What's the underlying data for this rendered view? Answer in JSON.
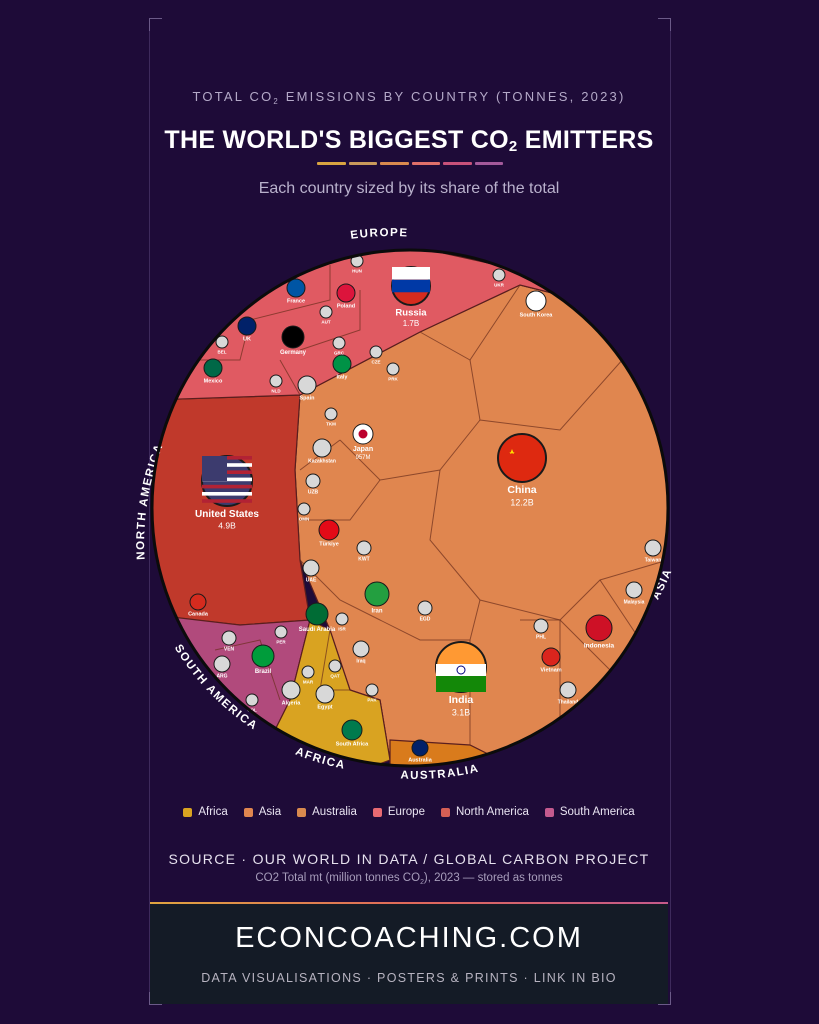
{
  "header": {
    "kicker_pre": "TOTAL CO",
    "kicker_sub": "2",
    "kicker_post": " EMISSIONS BY COUNTRY (TONNES, 2023)",
    "title_pre": "THE WORLD'S BIGGEST CO",
    "title_sub": "2",
    "title_post": " EMITTERS",
    "subtitle": "Each country sized by its share of the total",
    "rule_colors": [
      "#d9a441",
      "#c99a5b",
      "#d98a4e",
      "#e0706a",
      "#c8527a",
      "#a35a9a"
    ]
  },
  "chart_data": {
    "type": "voronoi-treemap",
    "unit": "tonnes",
    "year": 2023,
    "regions": [
      {
        "name": "Asia",
        "label": "ASIA",
        "color": "#e0864f"
      },
      {
        "name": "North America",
        "label": "NORTH AMERICA",
        "color": "#c0392b"
      },
      {
        "name": "Europe",
        "label": "EUROPE",
        "color": "#e05a62"
      },
      {
        "name": "South America",
        "label": "SOUTH AMERICA",
        "color": "#b14a7c"
      },
      {
        "name": "Africa",
        "label": "AFRICA",
        "color": "#d9a321"
      },
      {
        "name": "Australia",
        "label": "AUSTRALIA",
        "color": "#d97b1c"
      }
    ],
    "countries": [
      {
        "name": "China",
        "value": "12.2B",
        "region": "Asia"
      },
      {
        "name": "United States",
        "value": "4.9B",
        "region": "North America"
      },
      {
        "name": "India",
        "value": "3.1B",
        "region": "Asia"
      },
      {
        "name": "Russia",
        "value": "1.7B",
        "region": "Europe"
      },
      {
        "name": "Japan",
        "value": "957M",
        "region": "Asia"
      },
      {
        "name": "Iran",
        "value": "",
        "region": "Asia"
      },
      {
        "name": "Saudi Arabia",
        "value": "",
        "region": "Asia"
      },
      {
        "name": "Indonesia",
        "value": "",
        "region": "Asia"
      },
      {
        "name": "Germany",
        "value": "",
        "region": "Europe"
      },
      {
        "name": "South Korea",
        "value": "",
        "region": "Asia"
      },
      {
        "name": "Canada",
        "value": "",
        "region": "North America"
      },
      {
        "name": "Mexico",
        "value": "",
        "region": "North America"
      },
      {
        "name": "Brazil",
        "value": "",
        "region": "South America"
      },
      {
        "name": "Türkiye",
        "value": "",
        "region": "Asia"
      },
      {
        "name": "South Africa",
        "value": "",
        "region": "Africa"
      },
      {
        "name": "Australia",
        "value": "",
        "region": "Australia"
      },
      {
        "name": "Vietnam",
        "value": "",
        "region": "Asia"
      },
      {
        "name": "Kazakhstan",
        "value": "",
        "region": "Asia"
      },
      {
        "name": "UK",
        "value": "",
        "region": "Europe"
      },
      {
        "name": "Poland",
        "value": "",
        "region": "Europe"
      },
      {
        "name": "Italy",
        "value": "",
        "region": "Europe"
      },
      {
        "name": "France",
        "value": "",
        "region": "Europe"
      },
      {
        "name": "Taiwan",
        "value": "",
        "region": "Asia"
      },
      {
        "name": "Thailand",
        "value": "",
        "region": "Asia"
      },
      {
        "name": "Malaysia",
        "value": "",
        "region": "Asia"
      },
      {
        "name": "Egypt",
        "value": "",
        "region": "Africa"
      },
      {
        "name": "Spain",
        "value": "",
        "region": "Europe"
      },
      {
        "name": "UAE",
        "value": "",
        "region": "Asia"
      },
      {
        "name": "Iraq",
        "value": "",
        "region": "Asia"
      },
      {
        "name": "Algeria",
        "value": "",
        "region": "Africa"
      },
      {
        "name": "ARG",
        "value": "",
        "region": "South America"
      },
      {
        "name": "VEN",
        "value": "",
        "region": "South America"
      },
      {
        "name": "PHL",
        "value": "",
        "region": "Asia"
      },
      {
        "name": "KWT",
        "value": "",
        "region": "Asia"
      },
      {
        "name": "EGD",
        "value": "",
        "region": "Asia"
      },
      {
        "name": "UZB",
        "value": "",
        "region": "Asia"
      },
      {
        "name": "OMN",
        "value": "",
        "region": "Asia"
      },
      {
        "name": "QAT",
        "value": "",
        "region": "Asia"
      },
      {
        "name": "PAK",
        "value": "",
        "region": "Asia"
      },
      {
        "name": "MAR",
        "value": "",
        "region": "Africa"
      },
      {
        "name": "COL",
        "value": "",
        "region": "South America"
      },
      {
        "name": "PER",
        "value": "",
        "region": "South America"
      },
      {
        "name": "BEL",
        "value": "",
        "region": "Europe"
      },
      {
        "name": "NLD",
        "value": "",
        "region": "Europe"
      },
      {
        "name": "AUT",
        "value": "",
        "region": "Europe"
      },
      {
        "name": "CZE",
        "value": "",
        "region": "Europe"
      },
      {
        "name": "GRC",
        "value": "",
        "region": "Europe"
      },
      {
        "name": "HUN",
        "value": "",
        "region": "Europe"
      },
      {
        "name": "UKR",
        "value": "",
        "region": "Europe"
      },
      {
        "name": "ISR",
        "value": "",
        "region": "Asia"
      },
      {
        "name": "TKM",
        "value": "",
        "region": "Asia"
      },
      {
        "name": "PRK",
        "value": "",
        "region": "Asia"
      }
    ]
  },
  "legend": [
    {
      "label": "Africa",
      "color": "#d9a321"
    },
    {
      "label": "Asia",
      "color": "#e0864f"
    },
    {
      "label": "Australia",
      "color": "#d98a4e"
    },
    {
      "label": "Europe",
      "color": "#e86a72"
    },
    {
      "label": "North America",
      "color": "#d65f55"
    },
    {
      "label": "South America",
      "color": "#c45a8e"
    }
  ],
  "source": {
    "line": "SOURCE · OUR WORLD IN DATA / GLOBAL CARBON PROJECT",
    "note_pre": "CO2 Total mt (million tonnes CO",
    "note_sub": "2",
    "note_post": "), 2023 — stored as tonnes"
  },
  "footer": {
    "brand": "ECONCOACHING.COM",
    "tagline": "DATA VISUALISATIONS · POSTERS & PRINTS · LINK IN BIO"
  }
}
